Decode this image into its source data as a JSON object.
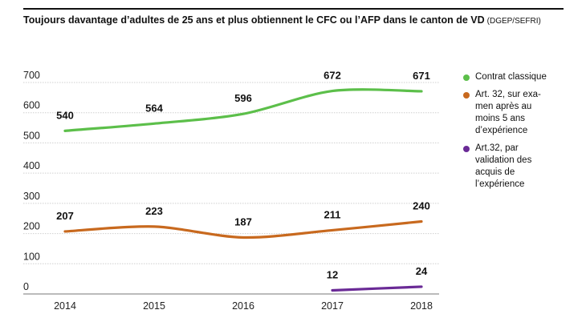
{
  "title": "Toujours davantage d’adultes de 25 ans et plus obtiennent le CFC ou l’AFP dans le canton de VD",
  "source": "(DGEP/SEFRI)",
  "chart_data": {
    "type": "line",
    "x": [
      "2014",
      "2015",
      "2016",
      "2017",
      "2018"
    ],
    "ylim": [
      0,
      700
    ],
    "yticks": [
      0,
      100,
      200,
      300,
      400,
      500,
      600,
      700
    ],
    "grid": true,
    "legend_position": "right",
    "series": [
      {
        "name": "Contrat classique",
        "color": "#5cbf4a",
        "values": [
          540,
          564,
          596,
          672,
          671
        ]
      },
      {
        "name": "Art. 32, sur examen après au moins 5 ans d’expérience",
        "color": "#c8691e",
        "values": [
          207,
          223,
          187,
          211,
          240
        ]
      },
      {
        "name": "Art.32, par validation des acquis de l’expérience",
        "color": "#6a2a96",
        "values": [
          null,
          null,
          null,
          12,
          24
        ]
      }
    ]
  },
  "legend": [
    {
      "label_lines": [
        "Contrat classique"
      ],
      "color": "#5cbf4a"
    },
    {
      "label_lines": [
        "Art. 32, sur exa-",
        "men après au",
        "moins 5 ans",
        "d’expérience"
      ],
      "color": "#c8691e"
    },
    {
      "label_lines": [
        "Art.32, par",
        "validation des",
        "acquis de",
        "l’expérience"
      ],
      "color": "#6a2a96"
    }
  ]
}
